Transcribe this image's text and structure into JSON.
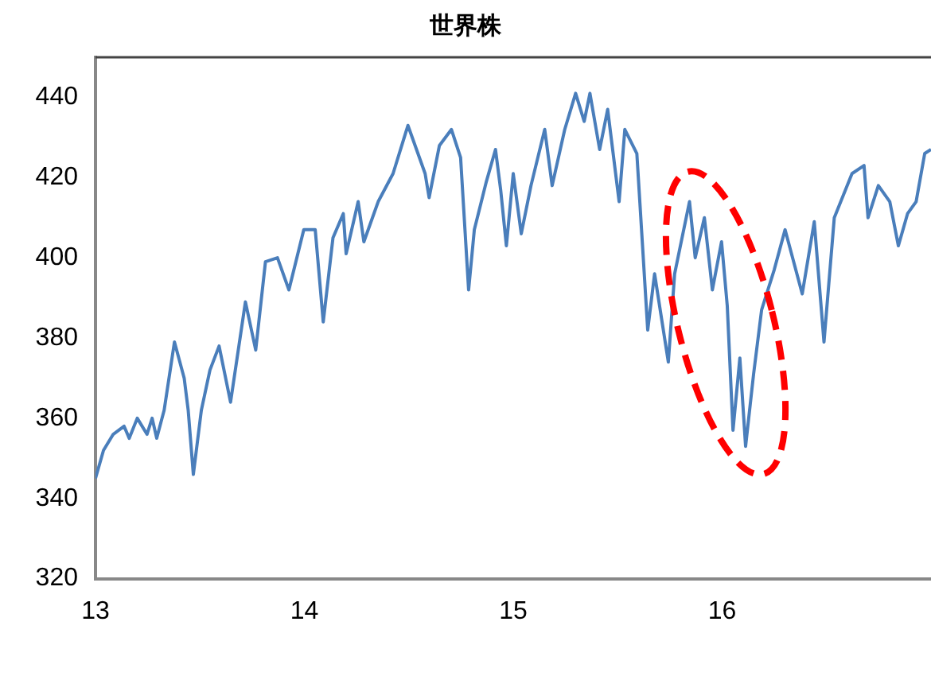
{
  "chart_data": {
    "type": "line",
    "title": "世界株",
    "x": [
      "2013-01-01",
      "2013-01-15",
      "2013-02-01",
      "2013-02-20",
      "2013-03-01",
      "2013-03-15",
      "2013-04-01",
      "2013-04-10",
      "2013-04-18",
      "2013-05-01",
      "2013-05-19",
      "2013-06-05",
      "2013-06-12",
      "2013-06-21",
      "2013-07-05",
      "2013-07-20",
      "2013-08-05",
      "2013-08-25",
      "2013-09-20",
      "2013-10-08",
      "2013-10-25",
      "2013-11-15",
      "2013-12-05",
      "2013-12-31",
      "2014-01-20",
      "2014-02-03",
      "2014-02-20",
      "2014-03-10",
      "2014-03-15",
      "2014-04-05",
      "2014-04-15",
      "2014-05-10",
      "2014-06-05",
      "2014-07-01",
      "2014-07-31",
      "2014-08-07",
      "2014-08-25",
      "2014-09-15",
      "2014-10-01",
      "2014-10-15",
      "2014-10-25",
      "2014-11-15",
      "2014-12-01",
      "2014-12-10",
      "2014-12-20",
      "2015-01-01",
      "2015-01-15",
      "2015-02-01",
      "2015-02-25",
      "2015-03-10",
      "2015-04-01",
      "2015-04-20",
      "2015-05-05",
      "2015-05-15",
      "2015-06-01",
      "2015-06-15",
      "2015-07-05",
      "2015-07-15",
      "2015-08-05",
      "2015-08-24",
      "2015-09-05",
      "2015-09-29",
      "2015-10-10",
      "2015-11-05",
      "2015-11-15",
      "2015-12-01",
      "2015-12-15",
      "2015-12-31",
      "2016-01-10",
      "2016-01-20",
      "2016-02-01",
      "2016-02-11",
      "2016-02-25",
      "2016-03-10",
      "2016-04-01",
      "2016-04-20",
      "2016-05-20",
      "2016-06-10",
      "2016-06-27",
      "2016-07-15",
      "2016-08-15",
      "2016-09-05",
      "2016-09-12",
      "2016-09-30",
      "2016-10-20",
      "2016-11-04",
      "2016-11-20",
      "2016-12-05",
      "2016-12-20",
      "2016-12-31"
    ],
    "series": [
      {
        "color": "#4a7ebb",
        "values": [
          345,
          352,
          356,
          358,
          355,
          360,
          356,
          360,
          355,
          362,
          379,
          370,
          362,
          346,
          362,
          372,
          378,
          364,
          389,
          377,
          399,
          400,
          392,
          407,
          407,
          384,
          405,
          411,
          401,
          414,
          404,
          414,
          421,
          433,
          421,
          415,
          428,
          432,
          425,
          392,
          407,
          419,
          427,
          417,
          403,
          421,
          406,
          418,
          432,
          418,
          432,
          441,
          434,
          441,
          427,
          437,
          414,
          432,
          426,
          382,
          396,
          374,
          396,
          414,
          400,
          410,
          392,
          404,
          388,
          357,
          375,
          353,
          371,
          387,
          397,
          407,
          391,
          409,
          379,
          410,
          421,
          423,
          410,
          418,
          414,
          403,
          411,
          414,
          426,
          427
        ]
      }
    ],
    "xlim": [
      "2013-01-01",
      "2016-12-31"
    ],
    "xticks": [
      {
        "value": "2013-01-01",
        "label": "13"
      },
      {
        "value": "2014-01-01",
        "label": "14"
      },
      {
        "value": "2015-01-01",
        "label": "15"
      },
      {
        "value": "2016-01-01",
        "label": "16"
      }
    ],
    "ylim": [
      320,
      450
    ],
    "yticks": [
      320,
      340,
      360,
      380,
      400,
      420,
      440
    ],
    "grid": false,
    "legend": false,
    "marker": "none",
    "line_style": "solid"
  }
}
